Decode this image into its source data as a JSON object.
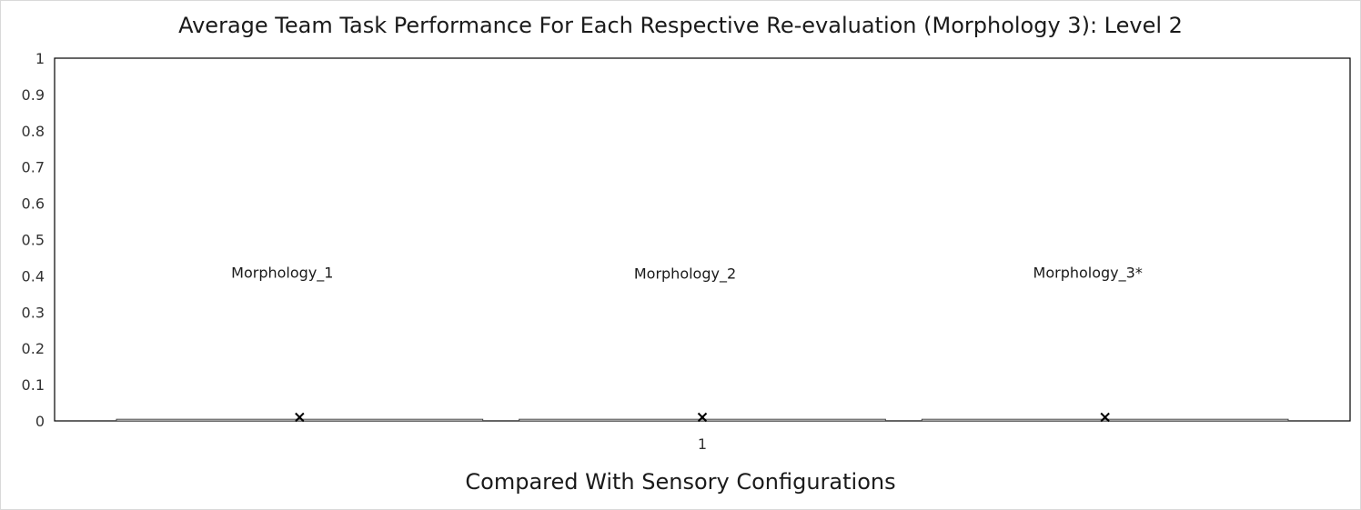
{
  "chart_data": {
    "type": "box",
    "title": "Average Team Task Performance For Each Respective Re-evaluation (Morphology 3): Level 2",
    "xlabel": "Compared With Sensory Configurations",
    "ylabel": "",
    "ylim": [
      0,
      1
    ],
    "yticks": [
      "0",
      "0.1",
      "0.2",
      "0.3",
      "0.4",
      "0.5",
      "0.6",
      "0.7",
      "0.8",
      "0.9",
      "1"
    ],
    "categories": [
      "1"
    ],
    "series": [
      {
        "name": "Morphology_1",
        "mean": 0.005,
        "min": 0,
        "q1": 0,
        "median": 0,
        "q3": 0.002,
        "max": 0.002
      },
      {
        "name": "Morphology_2",
        "mean": 0.005,
        "min": 0,
        "q1": 0,
        "median": 0,
        "q3": 0.002,
        "max": 0.002
      },
      {
        "name": "Morphology_3*",
        "mean": 0.005,
        "min": 0,
        "q1": 0,
        "median": 0,
        "q3": 0.002,
        "max": 0.002
      }
    ],
    "data_labels": [
      "Morphology_1",
      "Morphology_2",
      "Morphology_3*"
    ],
    "data_label_value": 0.35,
    "grid": false,
    "legend": "none"
  }
}
